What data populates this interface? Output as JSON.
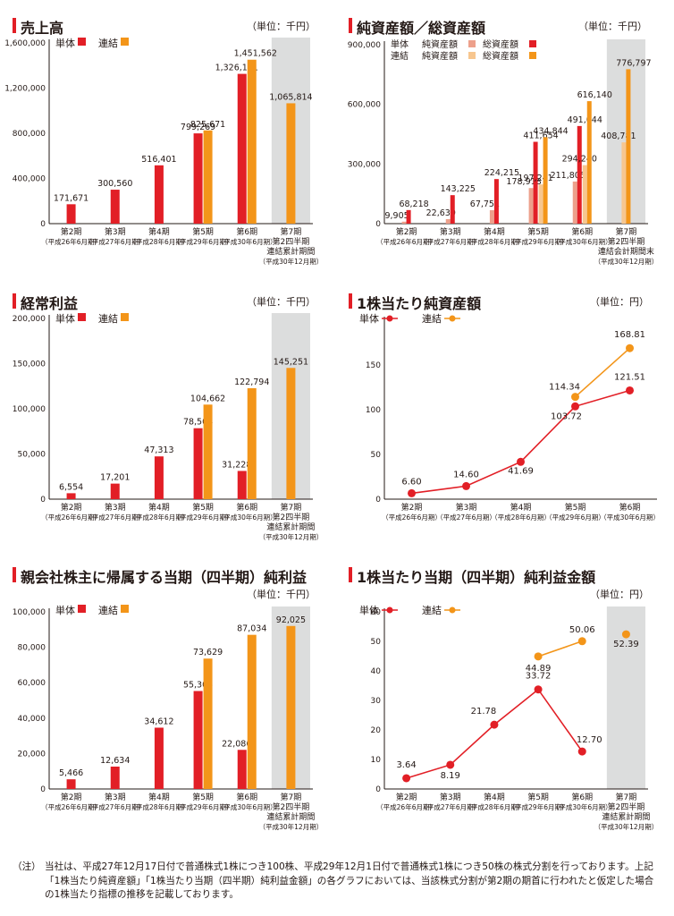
{
  "colors": {
    "tan": "#e21f26",
    "ren": "#f39519",
    "tan_light": "#eda08b",
    "ren_light": "#f7c68f",
    "shade": "#dcdddd",
    "axis": "#231815",
    "grid": "#b5b5b5"
  },
  "legend": {
    "tan": "単体",
    "ren": "連結",
    "net_assets": "純資産額",
    "total_assets": "総資産額"
  },
  "chart_data": [
    {
      "id": "sales",
      "type": "bar",
      "title": "売上高",
      "unit": "（単位：千円）",
      "ylim": [
        0,
        1600000
      ],
      "yticks": [
        "1,600,000",
        "1,200,000",
        "800,000",
        "400,000",
        "0"
      ],
      "categories": [
        [
          "第2期",
          "（平成26年6月期）"
        ],
        [
          "第3期",
          "（平成27年6月期）"
        ],
        [
          "第4期",
          "（平成28年6月期）"
        ],
        [
          "第5期",
          "（平成29年6月期）"
        ],
        [
          "第6期",
          "（平成30年6月期）"
        ],
        [
          "第7期",
          "第2四半期",
          "連結累計期間",
          "（平成30年12月期）"
        ]
      ],
      "series": [
        {
          "name": "単体",
          "values": [
            171671,
            300560,
            516401,
            799269,
            1326111,
            null
          ],
          "labels": [
            "171,671",
            "300,560",
            "516,401",
            "799,269",
            "1,326,111",
            ""
          ]
        },
        {
          "name": "連結",
          "values": [
            null,
            null,
            null,
            825671,
            1451562,
            1065814
          ],
          "labels": [
            "",
            "",
            "",
            "825,671",
            "1,451,562",
            "1,065,814"
          ]
        }
      ]
    },
    {
      "id": "assets",
      "type": "bar",
      "title": "純資産額／総資産額",
      "unit": "（単位：千円）",
      "ylim": [
        0,
        900000
      ],
      "yticks": [
        "900,000",
        "600,000",
        "300,000",
        "0"
      ],
      "legend_rows": [
        [
          "単体",
          "純資産額",
          "総資産額"
        ],
        [
          "連結",
          "純資産額",
          "総資産額"
        ]
      ],
      "categories": [
        [
          "第2期",
          "（平成26年6月期）"
        ],
        [
          "第3期",
          "（平成27年6月期）"
        ],
        [
          "第4期",
          "（平成28年6月期）"
        ],
        [
          "第5期",
          "（平成29年6月期）"
        ],
        [
          "第6期",
          "（平成30年6月期）"
        ],
        [
          "第7期",
          "第2四半期",
          "連結会計期間末",
          "（平成30年12月期）"
        ]
      ],
      "series": [
        {
          "name": "単体 純資産額",
          "values": [
            9905,
            22639,
            67751,
            178918,
            211805,
            null
          ],
          "labels": [
            "9,905",
            "22,639",
            "67,751",
            "178,918",
            "211,805",
            ""
          ]
        },
        {
          "name": "単体 総資産額",
          "values": [
            68218,
            143225,
            224215,
            411654,
            491044,
            null
          ],
          "labels": [
            "68,218",
            "143,225",
            "224,215",
            "411,654",
            "491,044",
            ""
          ]
        },
        {
          "name": "連結 純資産額",
          "values": [
            null,
            null,
            null,
            197241,
            294240,
            408781
          ],
          "labels": [
            "",
            "",
            "",
            "197,241",
            "294,240",
            "408,781"
          ]
        },
        {
          "name": "連結 総資産額",
          "values": [
            null,
            null,
            null,
            434844,
            616140,
            776797
          ],
          "labels": [
            "",
            "",
            "",
            "434,844",
            "616,140",
            "776,797"
          ]
        }
      ]
    },
    {
      "id": "ordinary",
      "type": "bar",
      "title": "経常利益",
      "unit": "（単位：千円）",
      "ylim": [
        0,
        200000
      ],
      "yticks": [
        "200,000",
        "150,000",
        "100,000",
        "50,000",
        "0"
      ],
      "categories": [
        [
          "第2期",
          "（平成26年6月期）"
        ],
        [
          "第3期",
          "（平成27年6月期）"
        ],
        [
          "第4期",
          "（平成28年6月期）"
        ],
        [
          "第5期",
          "（平成29年6月期）"
        ],
        [
          "第6期",
          "（平成30年6月期）"
        ],
        [
          "第7期",
          "第2四半期",
          "連結累計期間",
          "（平成30年12月期）"
        ]
      ],
      "series": [
        {
          "name": "単体",
          "values": [
            6554,
            17201,
            47313,
            78504,
            31228,
            null
          ],
          "labels": [
            "6,554",
            "17,201",
            "47,313",
            "78,504",
            "31,228",
            ""
          ]
        },
        {
          "name": "連結",
          "values": [
            null,
            null,
            null,
            104662,
            122794,
            145251
          ],
          "labels": [
            "",
            "",
            "",
            "104,662",
            "122,794",
            "145,251"
          ]
        }
      ]
    },
    {
      "id": "bps",
      "type": "line",
      "title": "1株当たり純資産額",
      "unit": "（単位：円）",
      "ylim": [
        0,
        200
      ],
      "yticks": [
        "150",
        "100",
        "50",
        "0"
      ],
      "categories": [
        [
          "第2期",
          "（平成26年6月期）"
        ],
        [
          "第3期",
          "（平成27年6月期）"
        ],
        [
          "第4期",
          "（平成28年6月期）"
        ],
        [
          "第5期",
          "（平成29年6月期）"
        ],
        [
          "第6期",
          "（平成30年6月期）"
        ]
      ],
      "series": [
        {
          "name": "単体",
          "values": [
            6.6,
            14.6,
            41.69,
            103.72,
            121.51
          ],
          "labels": [
            "6.60",
            "14.60",
            "41.69",
            "103.72",
            "121.51"
          ]
        },
        {
          "name": "連結",
          "values": [
            null,
            null,
            null,
            114.34,
            168.81
          ],
          "labels": [
            "",
            "",
            "",
            "114.34",
            "168.81"
          ]
        }
      ]
    },
    {
      "id": "netincome",
      "type": "bar",
      "title": "親会社株主に帰属する当期（四半期）純利益",
      "unit": "（単位：千円）",
      "ylim": [
        0,
        100000
      ],
      "yticks": [
        "100,000",
        "80,000",
        "60,000",
        "40,000",
        "20,000",
        "0"
      ],
      "categories": [
        [
          "第2期",
          "（平成26年6月期）"
        ],
        [
          "第3期",
          "（平成27年6月期）"
        ],
        [
          "第4期",
          "（平成28年6月期）"
        ],
        [
          "第5期",
          "（平成29年6月期）"
        ],
        [
          "第6期",
          "（平成30年6月期）"
        ],
        [
          "第7期",
          "第2四半期",
          "連結累計期間",
          "（平成30年12月期）"
        ]
      ],
      "series": [
        {
          "name": "単体",
          "values": [
            5466,
            12634,
            34612,
            55306,
            22086,
            null
          ],
          "labels": [
            "5,466",
            "12,634",
            "34,612",
            "55,306",
            "22,086",
            ""
          ]
        },
        {
          "name": "連結",
          "values": [
            null,
            null,
            null,
            73629,
            87034,
            92025
          ],
          "labels": [
            "",
            "",
            "",
            "73,629",
            "87,034",
            "92,025"
          ]
        }
      ]
    },
    {
      "id": "eps",
      "type": "line",
      "title": "1株当たり当期（四半期）純利益金額",
      "unit": "（単位：円）",
      "ylim": [
        0,
        60
      ],
      "yticks": [
        "60",
        "50",
        "40",
        "30",
        "20",
        "10",
        "0"
      ],
      "categories": [
        [
          "第2期",
          "（平成26年6月期）"
        ],
        [
          "第3期",
          "（平成27年6月期）"
        ],
        [
          "第4期",
          "（平成28年6月期）"
        ],
        [
          "第5期",
          "（平成29年6月期）"
        ],
        [
          "第6期",
          "（平成30年6月期）"
        ],
        [
          "第7期",
          "第2四半期",
          "連結累計期間",
          "（平成30年12月期）"
        ]
      ],
      "series": [
        {
          "name": "単体",
          "values": [
            3.64,
            8.19,
            21.78,
            33.72,
            12.7,
            null
          ],
          "labels": [
            "3.64",
            "8.19",
            "21.78",
            "33.72",
            "12.70",
            ""
          ]
        },
        {
          "name": "連結",
          "values": [
            null,
            null,
            null,
            44.89,
            50.06,
            52.39
          ],
          "labels": [
            "",
            "",
            "",
            "44.89",
            "50.06",
            "52.39"
          ]
        }
      ]
    }
  ],
  "note": {
    "label": "（注）",
    "text": "当社は、平成27年12月17日付で普通株式1株につき100株、平成29年12月1日付で普通株式1株につき50株の株式分割を行っております。上記「1株当たり純資産額」「1株当たり当期（四半期）純利益金額」の各グラフにおいては、当該株式分割が第2期の期首に行われたと仮定した場合の1株当たり指標の推移を記載しております。"
  }
}
